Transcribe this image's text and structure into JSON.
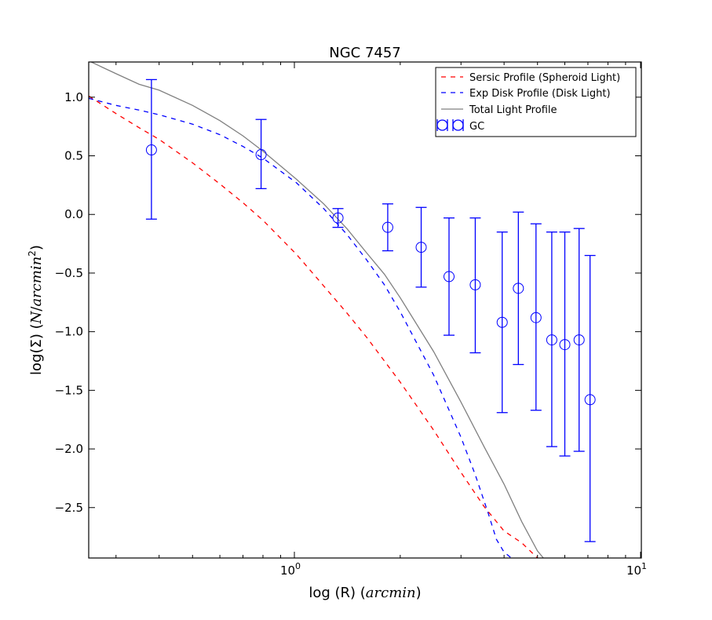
{
  "chart_data": {
    "type": "line",
    "title": "NGC 7457",
    "xlabel": {
      "prefix": "log (R) (",
      "unit": "arcmin",
      "suffix": ")"
    },
    "ylabel": {
      "prefix": "log(Σ) (",
      "unit_n": "N",
      "unit_slash": "/",
      "unit_area": "arcmin",
      "unit_exp": "2",
      "suffix": ")"
    },
    "x_scale": "log",
    "xlim": [
      0.25,
      10
    ],
    "ylim": [
      -2.93,
      1.3
    ],
    "x_ticks": [
      {
        "value": 1,
        "base": "10",
        "exp": "0"
      },
      {
        "value": 10,
        "base": "10",
        "exp": "1"
      }
    ],
    "y_ticks": [
      {
        "value": 1.0,
        "label": "1.0"
      },
      {
        "value": 0.5,
        "label": "0.5"
      },
      {
        "value": 0.0,
        "label": "0.0"
      },
      {
        "value": -0.5,
        "label": "−0.5"
      },
      {
        "value": -1.0,
        "label": "−1.0"
      },
      {
        "value": -1.5,
        "label": "−1.5"
      },
      {
        "value": -2.0,
        "label": "−2.0"
      },
      {
        "value": -2.5,
        "label": "−2.5"
      }
    ],
    "grid": false,
    "legend_position": "top-right",
    "series": [
      {
        "name": "Sersic Profile (Spheroid Light)",
        "style": "dashed",
        "color": "#ff0000",
        "x": [
          0.25,
          0.3,
          0.35,
          0.4,
          0.5,
          0.6,
          0.7,
          0.8,
          1.0,
          1.2,
          1.4,
          1.6,
          1.8,
          2.0,
          2.5,
          3.0,
          3.5,
          4.0,
          4.5,
          5.0
        ],
        "y": [
          1.01,
          0.86,
          0.74,
          0.64,
          0.44,
          0.26,
          0.1,
          -0.05,
          -0.34,
          -0.61,
          -0.84,
          -1.05,
          -1.25,
          -1.43,
          -1.84,
          -2.2,
          -2.49,
          -2.7,
          -2.8,
          -2.93
        ]
      },
      {
        "name": "Exp Disk Profile (Disk Light)",
        "style": "dashed",
        "color": "#0000ff",
        "x": [
          0.25,
          0.3,
          0.35,
          0.4,
          0.5,
          0.6,
          0.7,
          0.8,
          1.0,
          1.2,
          1.4,
          1.6,
          1.8,
          2.0,
          2.5,
          3.0,
          3.3,
          3.6,
          3.8,
          4.0,
          4.2
        ],
        "y": [
          0.99,
          0.93,
          0.89,
          0.85,
          0.77,
          0.68,
          0.58,
          0.48,
          0.27,
          0.05,
          -0.17,
          -0.39,
          -0.6,
          -0.83,
          -1.37,
          -1.9,
          -2.22,
          -2.55,
          -2.77,
          -2.88,
          -2.93
        ]
      },
      {
        "name": "Total Light Profile",
        "style": "solid",
        "color": "#808080",
        "x": [
          0.25,
          0.3,
          0.35,
          0.4,
          0.5,
          0.6,
          0.7,
          0.8,
          1.0,
          1.2,
          1.4,
          1.6,
          1.8,
          2.0,
          2.5,
          3.0,
          3.5,
          4.0,
          4.5,
          5.0,
          5.2
        ],
        "y": [
          1.31,
          1.2,
          1.11,
          1.06,
          0.93,
          0.8,
          0.67,
          0.54,
          0.3,
          0.09,
          -0.12,
          -0.33,
          -0.51,
          -0.71,
          -1.17,
          -1.6,
          -1.98,
          -2.3,
          -2.62,
          -2.87,
          -2.93
        ]
      },
      {
        "name": "GC",
        "style": "markers",
        "marker": "open-circle",
        "color": "#0000ff",
        "x": [
          0.38,
          0.79,
          1.32,
          1.84,
          2.3,
          2.77,
          3.3,
          3.95,
          4.4,
          4.95,
          5.5,
          6.0,
          6.6,
          7.1
        ],
        "y": [
          0.55,
          0.51,
          -0.03,
          -0.11,
          -0.28,
          -0.53,
          -0.6,
          -0.92,
          -0.63,
          -0.88,
          -1.07,
          -1.11,
          -1.07,
          -1.58
        ],
        "yerr_low": [
          -0.04,
          0.22,
          -0.11,
          -0.31,
          -0.62,
          -1.03,
          -1.18,
          -1.69,
          -1.28,
          -1.67,
          -1.98,
          -2.06,
          -2.02,
          -2.79
        ],
        "yerr_high": [
          1.15,
          0.81,
          0.05,
          0.09,
          0.06,
          -0.03,
          -0.03,
          -0.15,
          0.02,
          -0.08,
          -0.15,
          -0.15,
          -0.12,
          -0.35
        ]
      }
    ]
  }
}
